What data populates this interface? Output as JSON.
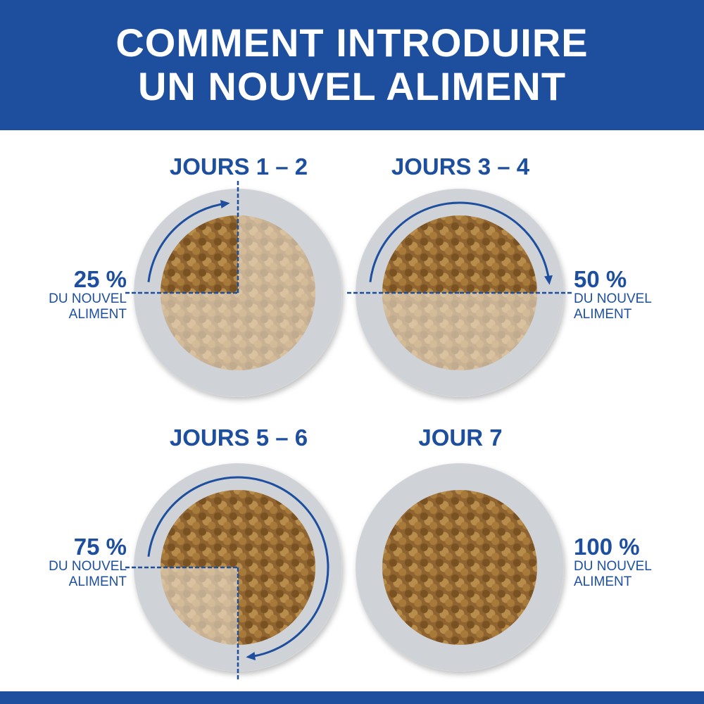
{
  "title": {
    "line1": "COMMENT INTRODUIRE",
    "line2": "UN NOUVEL ALIMENT"
  },
  "colors": {
    "brand_blue": "#1d4f9e"
  },
  "stages": [
    {
      "label": "JOURS 1 – 2",
      "percent": "25 %",
      "line1": "DU NOUVEL",
      "line2": "ALIMENT",
      "new_food_fraction": 0.25
    },
    {
      "label": "JOURS 3 – 4",
      "percent": "50 %",
      "line1": "DU NOUVEL",
      "line2": "ALIMENT",
      "new_food_fraction": 0.5
    },
    {
      "label": "JOURS 5 – 6",
      "percent": "75 %",
      "line1": "DU NOUVEL",
      "line2": "ALIMENT",
      "new_food_fraction": 0.75
    },
    {
      "label": "JOUR 7",
      "percent": "100 %",
      "line1": "DU NOUVEL",
      "line2": "ALIMENT",
      "new_food_fraction": 1
    }
  ]
}
